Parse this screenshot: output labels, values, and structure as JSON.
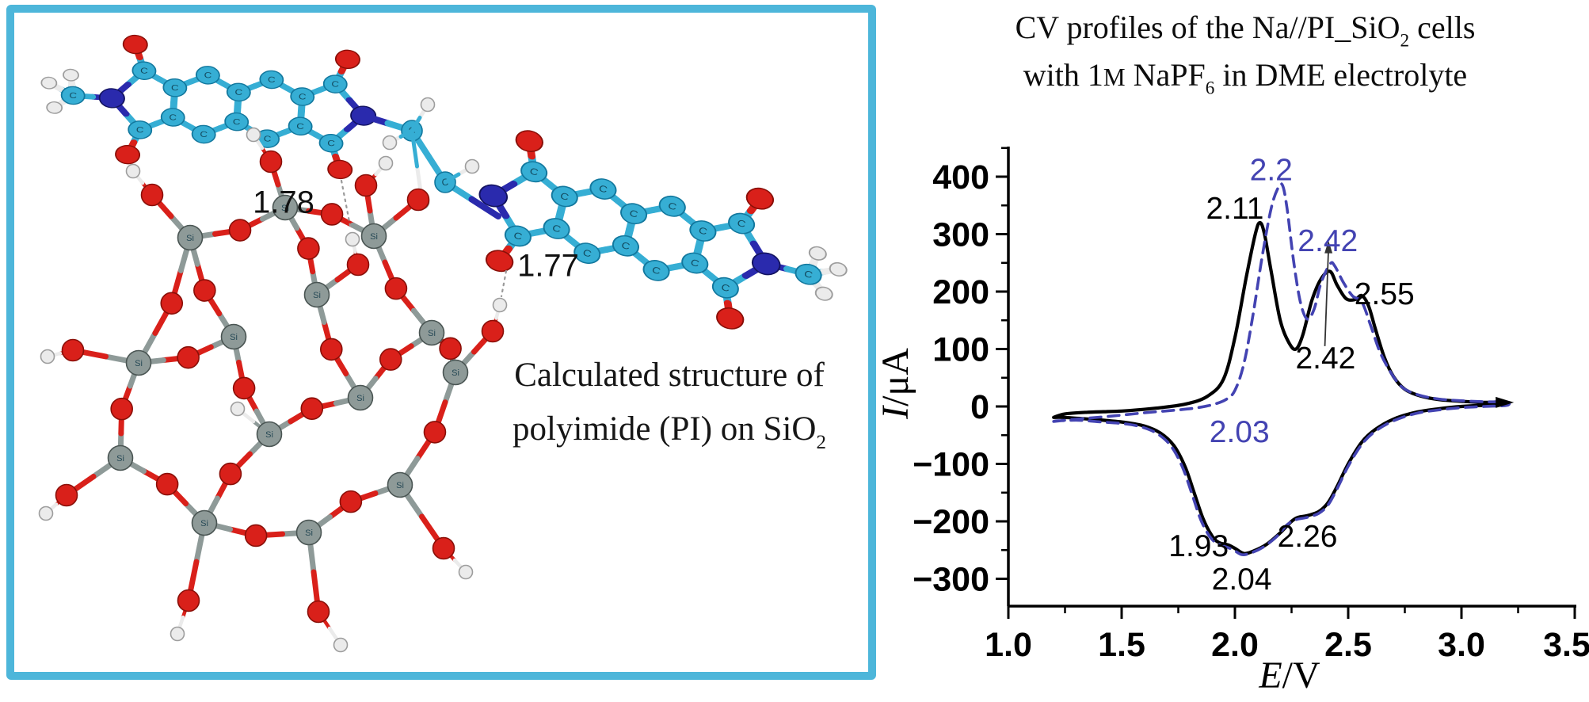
{
  "figure": {
    "molecule_panel": {
      "border_color": "#4db6da",
      "caption_line1": "Calculated structure of",
      "caption_line2_main": "polyimide (PI) on SiO",
      "caption_line2_sub": "2",
      "hbond_label_1": "1.78",
      "hbond_label_2": "1.77",
      "atom_colors": {
        "carbon": "#36aed4",
        "oxygen": "#d9201a",
        "nitrogen": "#2a2aad",
        "hydrogen": "#ebebeb",
        "silicon": "#8e9a98"
      }
    },
    "chart_title": {
      "line1_main": "CV profiles of the Na//PI_SiO",
      "line1_sub": "2",
      "line1_end": " cells",
      "line2_pre": "with 1",
      "line2_smallcap": "M",
      "line2_mid": " NaPF",
      "line2_sub": "6",
      "line2_end": " in DME electrolyte"
    }
  },
  "chart_data": {
    "type": "line",
    "title": "CV profiles of the Na//PI_SiO2 cells with 1M NaPF6 in DME electrolyte",
    "xlabel_italic": "E",
    "xlabel_rest": "/V",
    "ylabel_italic": "I",
    "ylabel_rest": "/μA",
    "xlim": [
      1.0,
      3.5
    ],
    "ylim": [
      -347,
      450
    ],
    "grid": false,
    "legend": "none",
    "x_ticks": {
      "values": [
        1.0,
        1.5,
        2.0,
        2.5,
        3.0,
        3.5
      ],
      "labels": [
        "1.0",
        "1.5",
        "2.0",
        "2.5",
        "3.0",
        "3.5"
      ]
    },
    "x_minor_ticks": [
      1.25,
      1.75,
      2.25,
      2.75,
      3.25
    ],
    "y_ticks": {
      "values": [
        400,
        300,
        200,
        100,
        0,
        -100,
        -200,
        -300
      ],
      "labels": [
        "400",
        "300",
        "200",
        "100",
        "0",
        "−100",
        "−200",
        "−300"
      ]
    },
    "y_minor_ticks": [
      450,
      350,
      250,
      150,
      50,
      -50,
      -150,
      -250
    ],
    "series": [
      {
        "name": "cycle-1-solid-black",
        "color": "#000000",
        "style": "solid",
        "points": [
          [
            1.2,
            -19
          ],
          [
            1.25,
            -13
          ],
          [
            1.35,
            -10
          ],
          [
            1.5,
            -8
          ],
          [
            1.65,
            -3
          ],
          [
            1.78,
            4
          ],
          [
            1.88,
            18
          ],
          [
            1.95,
            48
          ],
          [
            2.0,
            120
          ],
          [
            2.05,
            225
          ],
          [
            2.09,
            300
          ],
          [
            2.11,
            320
          ],
          [
            2.13,
            301
          ],
          [
            2.16,
            235
          ],
          [
            2.2,
            150
          ],
          [
            2.24,
            110
          ],
          [
            2.27,
            100
          ],
          [
            2.3,
            125
          ],
          [
            2.34,
            185
          ],
          [
            2.38,
            222
          ],
          [
            2.42,
            235
          ],
          [
            2.45,
            212
          ],
          [
            2.49,
            188
          ],
          [
            2.53,
            186
          ],
          [
            2.56,
            193
          ],
          [
            2.59,
            175
          ],
          [
            2.62,
            135
          ],
          [
            2.66,
            85
          ],
          [
            2.7,
            52
          ],
          [
            2.75,
            30
          ],
          [
            2.82,
            18
          ],
          [
            2.9,
            12
          ],
          [
            3.0,
            9
          ],
          [
            3.1,
            7
          ],
          [
            3.19,
            8
          ],
          [
            3.19,
            3
          ],
          [
            3.1,
            2
          ],
          [
            3.0,
            0
          ],
          [
            2.9,
            -4
          ],
          [
            2.8,
            -10
          ],
          [
            2.7,
            -22
          ],
          [
            2.62,
            -40
          ],
          [
            2.56,
            -62
          ],
          [
            2.5,
            -100
          ],
          [
            2.45,
            -140
          ],
          [
            2.41,
            -168
          ],
          [
            2.37,
            -183
          ],
          [
            2.32,
            -190
          ],
          [
            2.28,
            -193
          ],
          [
            2.25,
            -200
          ],
          [
            2.2,
            -220
          ],
          [
            2.14,
            -240
          ],
          [
            2.08,
            -252
          ],
          [
            2.04,
            -256
          ],
          [
            2.0,
            -247
          ],
          [
            1.97,
            -241
          ],
          [
            1.93,
            -237
          ],
          [
            1.9,
            -226
          ],
          [
            1.86,
            -196
          ],
          [
            1.82,
            -150
          ],
          [
            1.78,
            -105
          ],
          [
            1.73,
            -68
          ],
          [
            1.67,
            -46
          ],
          [
            1.6,
            -34
          ],
          [
            1.52,
            -28
          ],
          [
            1.42,
            -24
          ],
          [
            1.32,
            -21
          ],
          [
            1.24,
            -19
          ],
          [
            1.2,
            -19
          ]
        ]
      },
      {
        "name": "cycle-2-dashed-blue",
        "color": "#4343b2",
        "style": "dashed",
        "points": [
          [
            1.2,
            -26
          ],
          [
            1.3,
            -22
          ],
          [
            1.45,
            -17
          ],
          [
            1.6,
            -11
          ],
          [
            1.72,
            -7
          ],
          [
            1.82,
            -3
          ],
          [
            1.9,
            3
          ],
          [
            1.96,
            12
          ],
          [
            2.0,
            28
          ],
          [
            2.04,
            75
          ],
          [
            2.08,
            160
          ],
          [
            2.12,
            260
          ],
          [
            2.16,
            345
          ],
          [
            2.19,
            380
          ],
          [
            2.21,
            385
          ],
          [
            2.23,
            345
          ],
          [
            2.26,
            250
          ],
          [
            2.29,
            180
          ],
          [
            2.32,
            152
          ],
          [
            2.35,
            170
          ],
          [
            2.38,
            215
          ],
          [
            2.42,
            248
          ],
          [
            2.44,
            245
          ],
          [
            2.48,
            215
          ],
          [
            2.52,
            192
          ],
          [
            2.56,
            182
          ],
          [
            2.6,
            140
          ],
          [
            2.64,
            95
          ],
          [
            2.69,
            58
          ],
          [
            2.74,
            33
          ],
          [
            2.81,
            20
          ],
          [
            2.9,
            13
          ],
          [
            3.0,
            10
          ],
          [
            3.12,
            8
          ],
          [
            3.2,
            8
          ],
          [
            3.2,
            2
          ],
          [
            3.1,
            0
          ],
          [
            3.0,
            -2
          ],
          [
            2.9,
            -6
          ],
          [
            2.8,
            -12
          ],
          [
            2.7,
            -25
          ],
          [
            2.62,
            -43
          ],
          [
            2.56,
            -66
          ],
          [
            2.5,
            -104
          ],
          [
            2.45,
            -144
          ],
          [
            2.41,
            -172
          ],
          [
            2.37,
            -186
          ],
          [
            2.32,
            -193
          ],
          [
            2.27,
            -197
          ],
          [
            2.23,
            -206
          ],
          [
            2.18,
            -228
          ],
          [
            2.12,
            -246
          ],
          [
            2.07,
            -255
          ],
          [
            2.03,
            -258
          ],
          [
            1.99,
            -249
          ],
          [
            1.95,
            -243
          ],
          [
            1.92,
            -238
          ],
          [
            1.89,
            -227
          ],
          [
            1.85,
            -198
          ],
          [
            1.81,
            -152
          ],
          [
            1.77,
            -107
          ],
          [
            1.72,
            -70
          ],
          [
            1.66,
            -48
          ],
          [
            1.59,
            -36
          ],
          [
            1.51,
            -30
          ],
          [
            1.41,
            -27
          ],
          [
            1.31,
            -24
          ],
          [
            1.22,
            -25
          ],
          [
            1.2,
            -26
          ]
        ]
      }
    ],
    "annotations": [
      {
        "text": "2.11",
        "color": "#000000",
        "at": [
          2.0,
          345
        ]
      },
      {
        "text": "2.2",
        "color": "#4343b2",
        "at": [
          2.16,
          412
        ]
      },
      {
        "text": "2.42",
        "color": "#4343b2",
        "at": [
          2.41,
          288
        ]
      },
      {
        "text": "2.55",
        "color": "#000000",
        "at": [
          2.66,
          196
        ]
      },
      {
        "text": "2.42",
        "color": "#000000",
        "at": [
          2.4,
          84
        ]
      },
      {
        "text": "2.03",
        "color": "#4343b2",
        "at": [
          2.02,
          -44
        ]
      },
      {
        "text": "1.93",
        "color": "#000000",
        "at": [
          1.84,
          -243
        ]
      },
      {
        "text": "2.04",
        "color": "#000000",
        "at": [
          2.03,
          -301
        ]
      },
      {
        "text": "2.26",
        "color": "#000000",
        "at": [
          2.32,
          -226
        ]
      }
    ],
    "peak_arrow": {
      "from": [
        2.397,
        105
      ],
      "to": [
        2.413,
        275
      ]
    },
    "scan_direction_marker": [
      3.2,
      7
    ]
  }
}
